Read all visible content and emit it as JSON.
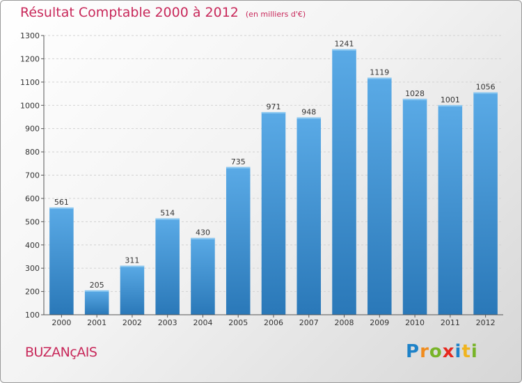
{
  "title": "Résultat Comptable 2000 à 2012",
  "subtitle": "(en milliers d'€)",
  "city": "BUZANçAIS",
  "logo": {
    "letters": [
      "P",
      "r",
      "o",
      "x",
      "i",
      "t",
      "i"
    ],
    "colors": [
      "#1e82c8",
      "#f08c1e",
      "#78b428",
      "#e6281e",
      "#1e82c8",
      "#f0b41e",
      "#78b428"
    ]
  },
  "colors": {
    "bar_top": "#5aaae6",
    "bar_bottom": "#2a78b8",
    "accent": "#c8285a"
  },
  "chart_data": {
    "type": "bar",
    "title": "Résultat Comptable 2000 à 2012",
    "subtitle": "(en milliers d'€)",
    "categories": [
      "2000",
      "2001",
      "2002",
      "2003",
      "2004",
      "2005",
      "2006",
      "2007",
      "2008",
      "2009",
      "2010",
      "2011",
      "2012"
    ],
    "values": [
      561,
      205,
      311,
      514,
      430,
      735,
      971,
      948,
      1241,
      1119,
      1028,
      1001,
      1056
    ],
    "ylim": [
      100,
      1300
    ],
    "yticks": [
      100,
      200,
      300,
      400,
      500,
      600,
      700,
      800,
      900,
      1000,
      1100,
      1200,
      1300
    ],
    "grid": true,
    "xlabel": "",
    "ylabel": ""
  }
}
